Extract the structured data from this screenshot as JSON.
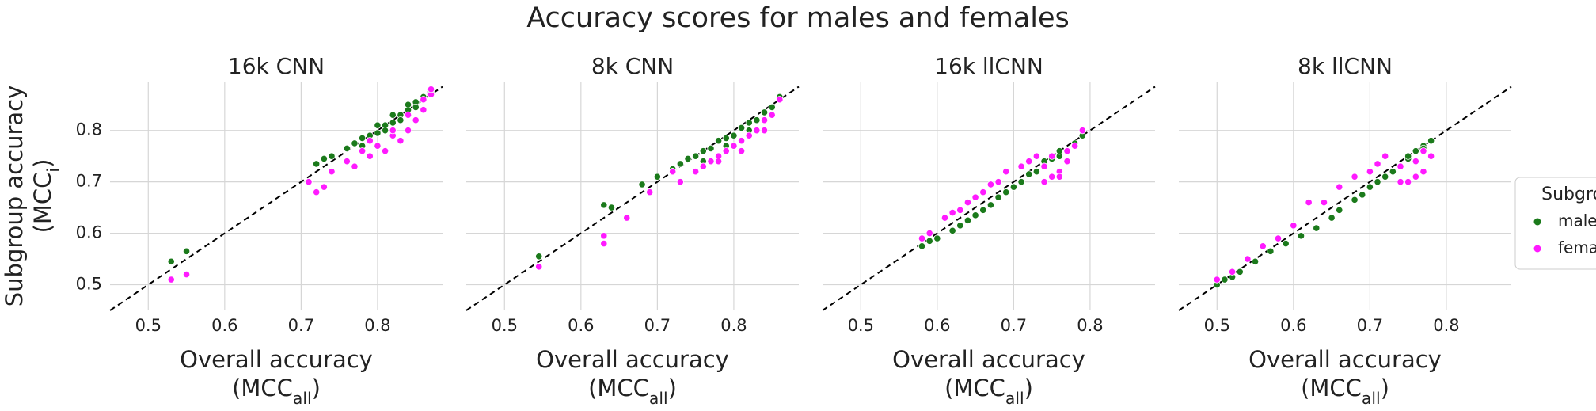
{
  "title": "Accuracy scores for males and females",
  "chart_data": [
    {
      "type": "scatter",
      "title": "16k CNN",
      "xlim": [
        0.45,
        0.885
      ],
      "ylim": [
        0.45,
        0.895
      ],
      "xticks": [
        0.5,
        0.6,
        0.7,
        0.8
      ],
      "yticks": [
        0.5,
        0.6,
        0.7,
        0.8
      ],
      "show_yticklabels": true,
      "grid": true,
      "diagonal": true,
      "xlabel": {
        "text": "Overall accuracy",
        "open": "(MCC",
        "sub": "all",
        "close": ")"
      },
      "ylabel": {
        "text": "Subgroup accuracy",
        "open": "(MCC",
        "sub": "i",
        "close": ")"
      },
      "series": [
        {
          "name": "male",
          "color": "#1b7a1b",
          "x": [
            0.53,
            0.55,
            0.72,
            0.73,
            0.74,
            0.76,
            0.77,
            0.78,
            0.79,
            0.8,
            0.8,
            0.81,
            0.82,
            0.82,
            0.83,
            0.84,
            0.84,
            0.85,
            0.86,
            0.87,
            0.78,
            0.81,
            0.83,
            0.85,
            0.86
          ],
          "values": [
            0.545,
            0.565,
            0.735,
            0.745,
            0.75,
            0.765,
            0.775,
            0.785,
            0.79,
            0.795,
            0.81,
            0.81,
            0.815,
            0.83,
            0.83,
            0.84,
            0.85,
            0.855,
            0.86,
            0.875,
            0.77,
            0.8,
            0.82,
            0.845,
            0.865
          ]
        },
        {
          "name": "female",
          "color": "#ff1aff",
          "x": [
            0.53,
            0.55,
            0.71,
            0.72,
            0.73,
            0.74,
            0.76,
            0.77,
            0.78,
            0.79,
            0.8,
            0.81,
            0.82,
            0.83,
            0.84,
            0.85,
            0.86,
            0.87,
            0.79,
            0.82,
            0.84,
            0.86,
            0.87
          ],
          "values": [
            0.51,
            0.52,
            0.7,
            0.68,
            0.69,
            0.72,
            0.74,
            0.73,
            0.76,
            0.75,
            0.77,
            0.76,
            0.79,
            0.78,
            0.8,
            0.82,
            0.84,
            0.87,
            0.78,
            0.8,
            0.83,
            0.86,
            0.88
          ]
        }
      ]
    },
    {
      "type": "scatter",
      "title": "8k CNN",
      "xlim": [
        0.45,
        0.885
      ],
      "ylim": [
        0.45,
        0.895
      ],
      "xticks": [
        0.5,
        0.6,
        0.7,
        0.8
      ],
      "yticks": [
        0.5,
        0.6,
        0.7,
        0.8
      ],
      "show_yticklabels": false,
      "grid": true,
      "diagonal": true,
      "xlabel": {
        "text": "Overall accuracy",
        "open": "(MCC",
        "sub": "all",
        "close": ")"
      },
      "series": [
        {
          "name": "male",
          "color": "#1b7a1b",
          "x": [
            0.545,
            0.63,
            0.64,
            0.68,
            0.7,
            0.72,
            0.73,
            0.74,
            0.75,
            0.76,
            0.77,
            0.78,
            0.79,
            0.8,
            0.81,
            0.82,
            0.83,
            0.84,
            0.85,
            0.86,
            0.76,
            0.79,
            0.82,
            0.84
          ],
          "values": [
            0.555,
            0.655,
            0.65,
            0.695,
            0.71,
            0.725,
            0.735,
            0.745,
            0.75,
            0.76,
            0.765,
            0.78,
            0.785,
            0.79,
            0.805,
            0.815,
            0.82,
            0.835,
            0.845,
            0.865,
            0.74,
            0.77,
            0.8,
            0.82
          ]
        },
        {
          "name": "female",
          "color": "#ff1aff",
          "x": [
            0.545,
            0.63,
            0.63,
            0.66,
            0.69,
            0.72,
            0.73,
            0.75,
            0.76,
            0.77,
            0.78,
            0.79,
            0.8,
            0.81,
            0.82,
            0.83,
            0.84,
            0.85,
            0.86,
            0.78,
            0.81,
            0.84
          ],
          "values": [
            0.535,
            0.58,
            0.595,
            0.63,
            0.68,
            0.72,
            0.7,
            0.72,
            0.73,
            0.74,
            0.75,
            0.76,
            0.77,
            0.78,
            0.79,
            0.8,
            0.82,
            0.83,
            0.86,
            0.74,
            0.76,
            0.8
          ]
        }
      ]
    },
    {
      "type": "scatter",
      "title": "16k llCNN",
      "xlim": [
        0.45,
        0.885
      ],
      "ylim": [
        0.45,
        0.895
      ],
      "xticks": [
        0.5,
        0.6,
        0.7,
        0.8
      ],
      "yticks": [
        0.5,
        0.6,
        0.7,
        0.8
      ],
      "show_yticklabels": false,
      "grid": true,
      "diagonal": true,
      "xlabel": {
        "text": "Overall accuracy",
        "open": "(MCC",
        "sub": "all",
        "close": ")"
      },
      "series": [
        {
          "name": "male",
          "color": "#1b7a1b",
          "x": [
            0.58,
            0.59,
            0.6,
            0.62,
            0.63,
            0.64,
            0.65,
            0.66,
            0.67,
            0.68,
            0.69,
            0.7,
            0.71,
            0.72,
            0.73,
            0.74,
            0.75,
            0.76,
            0.77,
            0.78,
            0.79,
            0.74,
            0.76
          ],
          "values": [
            0.575,
            0.585,
            0.59,
            0.605,
            0.615,
            0.625,
            0.635,
            0.645,
            0.655,
            0.67,
            0.68,
            0.69,
            0.7,
            0.715,
            0.72,
            0.73,
            0.745,
            0.75,
            0.76,
            0.775,
            0.79,
            0.74,
            0.76
          ]
        },
        {
          "name": "female",
          "color": "#ff1aff",
          "x": [
            0.58,
            0.59,
            0.61,
            0.62,
            0.63,
            0.64,
            0.65,
            0.66,
            0.67,
            0.68,
            0.69,
            0.71,
            0.72,
            0.73,
            0.74,
            0.75,
            0.76,
            0.77,
            0.78,
            0.79,
            0.74,
            0.76,
            0.75,
            0.77
          ],
          "values": [
            0.59,
            0.6,
            0.63,
            0.64,
            0.645,
            0.66,
            0.67,
            0.68,
            0.695,
            0.7,
            0.72,
            0.73,
            0.74,
            0.75,
            0.73,
            0.71,
            0.72,
            0.74,
            0.77,
            0.8,
            0.7,
            0.71,
            0.75,
            0.76
          ]
        }
      ]
    },
    {
      "type": "scatter",
      "title": "8k llCNN",
      "xlim": [
        0.45,
        0.885
      ],
      "ylim": [
        0.45,
        0.895
      ],
      "xticks": [
        0.5,
        0.6,
        0.7,
        0.8
      ],
      "yticks": [
        0.5,
        0.6,
        0.7,
        0.8
      ],
      "show_yticklabels": false,
      "grid": true,
      "diagonal": true,
      "xlabel": {
        "text": "Overall accuracy",
        "open": "(MCC",
        "sub": "all",
        "close": ")"
      },
      "legend": {
        "title": "Subgroup",
        "loc": "right"
      },
      "series": [
        {
          "name": "male",
          "color": "#1b7a1b",
          "x": [
            0.5,
            0.51,
            0.52,
            0.53,
            0.55,
            0.57,
            0.59,
            0.61,
            0.63,
            0.65,
            0.66,
            0.68,
            0.69,
            0.7,
            0.71,
            0.72,
            0.73,
            0.74,
            0.75,
            0.76,
            0.77,
            0.78,
            0.75,
            0.77
          ],
          "values": [
            0.5,
            0.51,
            0.515,
            0.525,
            0.545,
            0.565,
            0.58,
            0.595,
            0.61,
            0.63,
            0.645,
            0.665,
            0.675,
            0.69,
            0.7,
            0.71,
            0.72,
            0.73,
            0.745,
            0.76,
            0.77,
            0.78,
            0.75,
            0.765
          ]
        },
        {
          "name": "female",
          "color": "#ff1aff",
          "x": [
            0.5,
            0.52,
            0.54,
            0.56,
            0.58,
            0.6,
            0.62,
            0.64,
            0.66,
            0.68,
            0.7,
            0.71,
            0.72,
            0.74,
            0.75,
            0.76,
            0.77,
            0.78,
            0.76,
            0.74,
            0.77
          ],
          "values": [
            0.51,
            0.525,
            0.55,
            0.575,
            0.59,
            0.615,
            0.66,
            0.66,
            0.69,
            0.71,
            0.72,
            0.735,
            0.75,
            0.73,
            0.7,
            0.71,
            0.72,
            0.75,
            0.74,
            0.7,
            0.76
          ]
        }
      ]
    }
  ]
}
